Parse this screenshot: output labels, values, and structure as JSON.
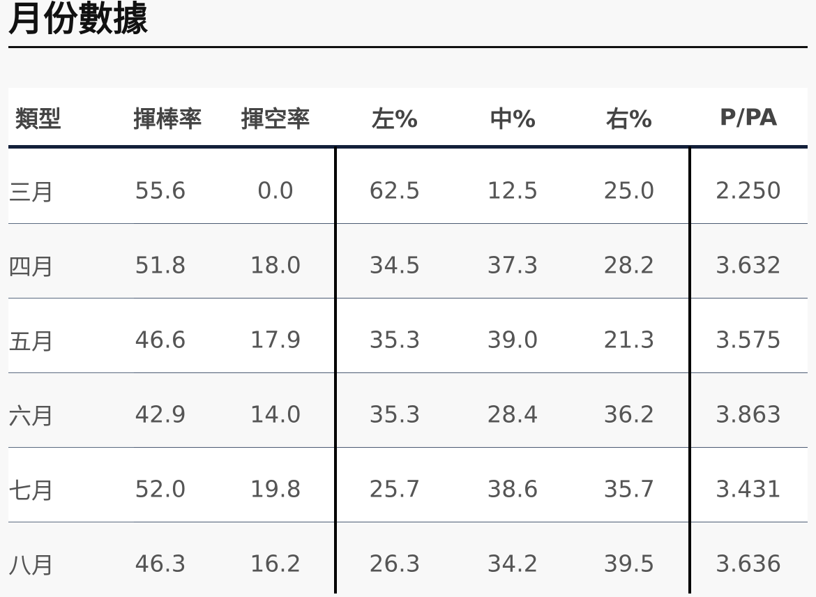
{
  "header": {
    "title": "月份數據"
  },
  "table": {
    "columns": [
      "類型",
      "揮棒率",
      "揮空率",
      "左%",
      "中%",
      "右%",
      "P/PA"
    ],
    "rows": [
      [
        "三月",
        "55.6",
        "0.0",
        "62.5",
        "12.5",
        "25.0",
        "2.250"
      ],
      [
        "四月",
        "51.8",
        "18.0",
        "34.5",
        "37.3",
        "28.2",
        "3.632"
      ],
      [
        "五月",
        "46.6",
        "17.9",
        "35.3",
        "39.0",
        "21.3",
        "3.575"
      ],
      [
        "六月",
        "42.9",
        "14.0",
        "35.3",
        "28.4",
        "36.2",
        "3.863"
      ],
      [
        "七月",
        "52.0",
        "19.8",
        "25.7",
        "38.6",
        "35.7",
        "3.431"
      ],
      [
        "八月",
        "46.3",
        "16.2",
        "26.3",
        "34.2",
        "39.5",
        "3.636"
      ]
    ]
  }
}
